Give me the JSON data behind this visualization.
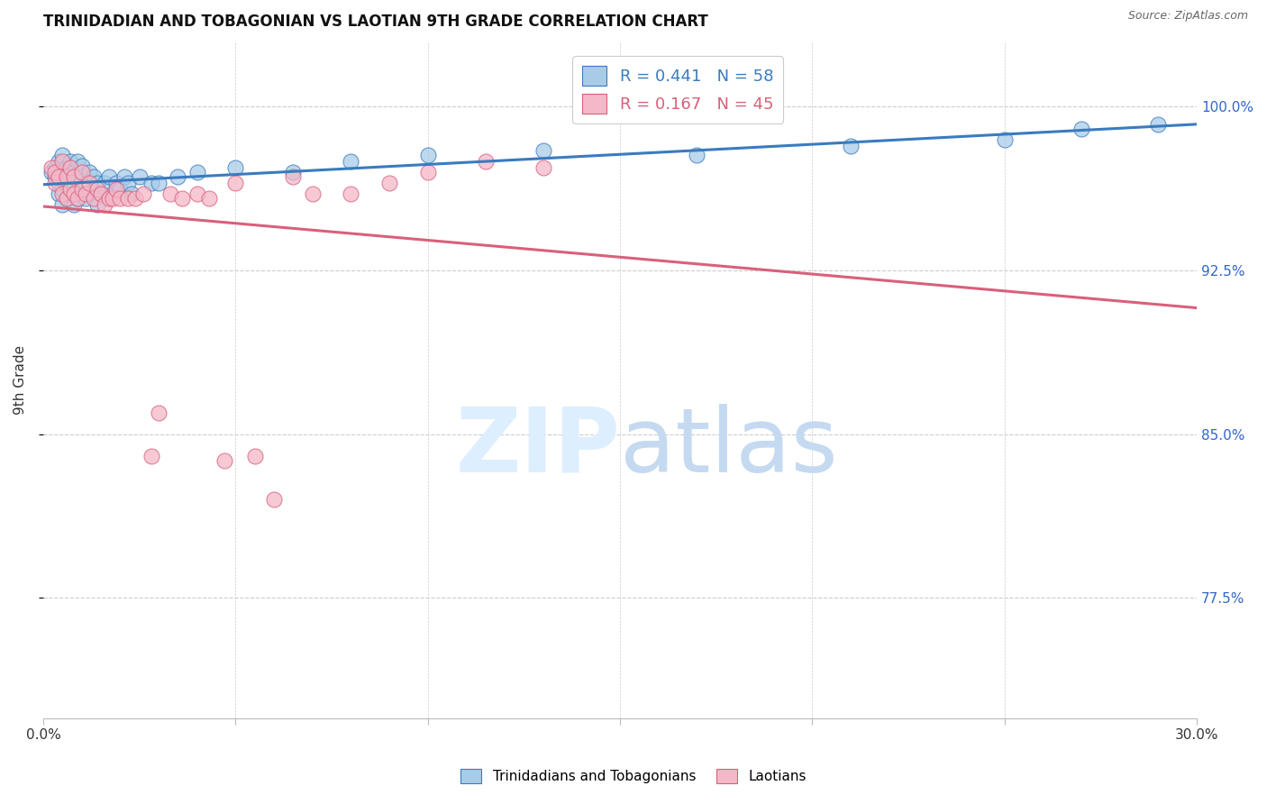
{
  "title": "TRINIDADIAN AND TOBAGONIAN VS LAOTIAN 9TH GRADE CORRELATION CHART",
  "source": "Source: ZipAtlas.com",
  "ylabel": "9th Grade",
  "ytick_labels": [
    "77.5%",
    "85.0%",
    "92.5%",
    "100.0%"
  ],
  "ytick_values": [
    0.775,
    0.85,
    0.925,
    1.0
  ],
  "xlim": [
    0.0,
    0.3
  ],
  "ylim": [
    0.72,
    1.03
  ],
  "legend_blue_r": "0.441",
  "legend_blue_n": "58",
  "legend_pink_r": "0.167",
  "legend_pink_n": "45",
  "blue_color": "#a8cce8",
  "pink_color": "#f4b8c8",
  "line_blue_color": "#3a7bbf",
  "line_pink_color": "#d9607a",
  "legend_text_blue": "#3a7bbf",
  "legend_text_pink": "#d9607a",
  "blue_points_x": [
    0.002,
    0.003,
    0.003,
    0.004,
    0.004,
    0.004,
    0.005,
    0.005,
    0.005,
    0.005,
    0.006,
    0.006,
    0.006,
    0.007,
    0.007,
    0.007,
    0.008,
    0.008,
    0.008,
    0.009,
    0.009,
    0.009,
    0.009,
    0.01,
    0.01,
    0.01,
    0.011,
    0.011,
    0.012,
    0.012,
    0.013,
    0.013,
    0.014,
    0.014,
    0.015,
    0.016,
    0.017,
    0.018,
    0.019,
    0.02,
    0.021,
    0.022,
    0.023,
    0.025,
    0.028,
    0.03,
    0.035,
    0.04,
    0.05,
    0.065,
    0.08,
    0.1,
    0.13,
    0.17,
    0.21,
    0.25,
    0.27,
    0.29
  ],
  "blue_points_y": [
    0.97,
    0.968,
    0.972,
    0.96,
    0.965,
    0.975,
    0.955,
    0.962,
    0.97,
    0.978,
    0.958,
    0.965,
    0.972,
    0.96,
    0.967,
    0.975,
    0.955,
    0.963,
    0.97,
    0.958,
    0.962,
    0.968,
    0.975,
    0.96,
    0.966,
    0.973,
    0.958,
    0.965,
    0.96,
    0.97,
    0.962,
    0.968,
    0.955,
    0.965,
    0.96,
    0.965,
    0.968,
    0.96,
    0.965,
    0.962,
    0.968,
    0.965,
    0.96,
    0.968,
    0.965,
    0.965,
    0.968,
    0.97,
    0.972,
    0.97,
    0.975,
    0.978,
    0.98,
    0.978,
    0.982,
    0.985,
    0.99,
    0.992
  ],
  "pink_points_x": [
    0.002,
    0.003,
    0.003,
    0.004,
    0.005,
    0.005,
    0.006,
    0.006,
    0.007,
    0.007,
    0.008,
    0.008,
    0.009,
    0.01,
    0.01,
    0.011,
    0.012,
    0.013,
    0.014,
    0.015,
    0.016,
    0.017,
    0.018,
    0.019,
    0.02,
    0.022,
    0.024,
    0.026,
    0.028,
    0.03,
    0.033,
    0.036,
    0.04,
    0.043,
    0.047,
    0.05,
    0.055,
    0.06,
    0.065,
    0.07,
    0.08,
    0.09,
    0.1,
    0.115,
    0.13
  ],
  "pink_points_y": [
    0.972,
    0.965,
    0.97,
    0.968,
    0.96,
    0.975,
    0.958,
    0.968,
    0.962,
    0.972,
    0.96,
    0.968,
    0.958,
    0.962,
    0.97,
    0.96,
    0.965,
    0.958,
    0.962,
    0.96,
    0.955,
    0.958,
    0.958,
    0.962,
    0.958,
    0.958,
    0.958,
    0.96,
    0.84,
    0.86,
    0.96,
    0.958,
    0.96,
    0.958,
    0.838,
    0.965,
    0.84,
    0.82,
    0.968,
    0.96,
    0.96,
    0.965,
    0.97,
    0.975,
    0.972
  ],
  "watermark_zip_color": "#ddeeff",
  "watermark_atlas_color": "#c5daf0",
  "grid_color": "#cccccc",
  "bottom_label_blue": "Trinidadians and Tobagonians",
  "bottom_label_pink": "Laotians"
}
